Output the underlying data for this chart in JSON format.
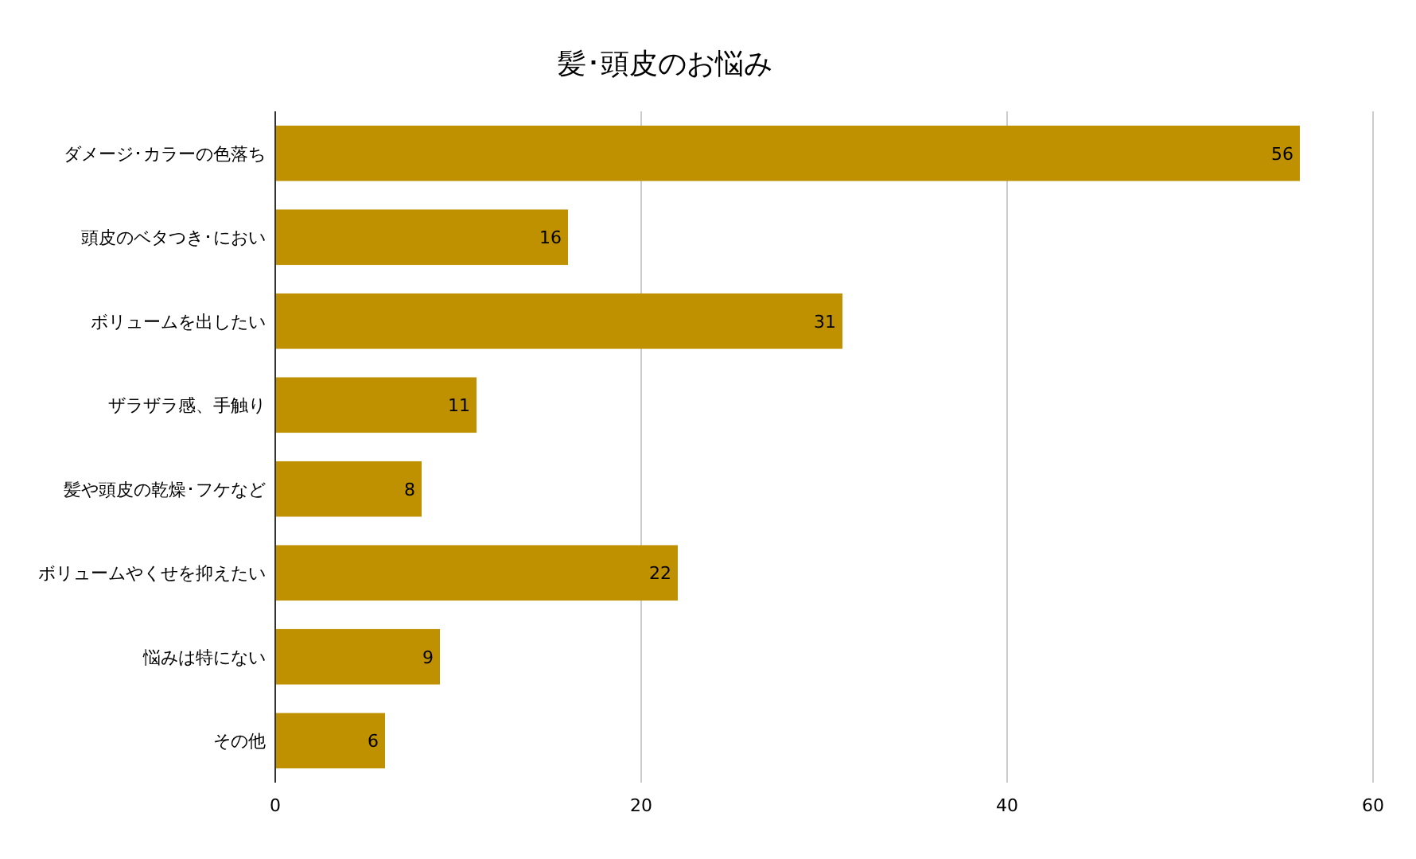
{
  "chart_data": {
    "type": "bar",
    "orientation": "horizontal",
    "title": "髪･頭皮のお悩み",
    "categories": [
      "ダメージ･カラーの色落ち",
      "頭皮のベタつき･におい",
      "ボリュームを出したい",
      "ザラザラ感、手触り",
      "髪や頭皮の乾燥･フケなど",
      "ボリュームやくせを抑えたい",
      "悩みは特にない",
      "その他"
    ],
    "values": [
      56,
      16,
      31,
      11,
      8,
      22,
      9,
      6
    ],
    "color": "#bf9000",
    "xlim": [
      0,
      60
    ],
    "xticks": [
      0,
      20,
      40,
      60
    ],
    "grid": "x",
    "data_labels": true
  }
}
